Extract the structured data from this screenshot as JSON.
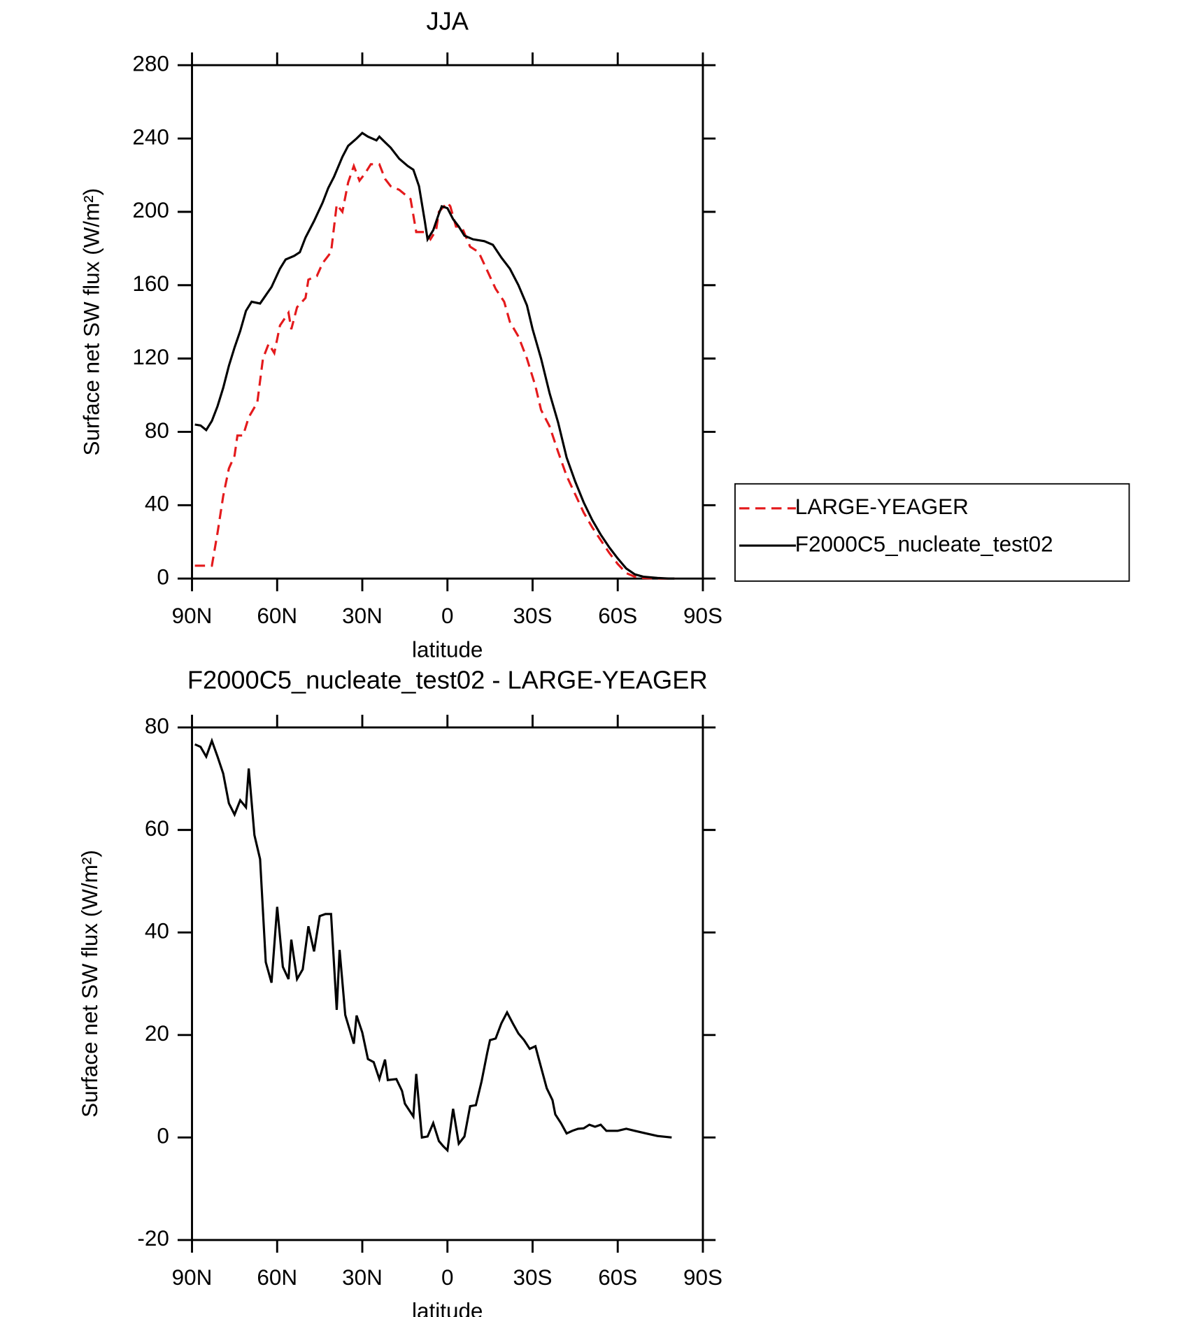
{
  "chart_data": [
    {
      "type": "line",
      "title": "JJA",
      "xlabel": "latitude",
      "ylabel": "Surface net SW flux (W/m²)",
      "xlim": [
        90,
        -90
      ],
      "xticks": [
        {
          "value": 90,
          "label": "90N"
        },
        {
          "value": 60,
          "label": "60N"
        },
        {
          "value": 30,
          "label": "30N"
        },
        0,
        {
          "value": -30,
          "label": "30S"
        },
        {
          "value": -60,
          "label": "60S"
        },
        {
          "value": -90,
          "label": "90S"
        }
      ],
      "ylim": [
        0,
        280
      ],
      "yticks": [
        0,
        40,
        80,
        120,
        160,
        200,
        240,
        280
      ],
      "legend": "right",
      "series": [
        {
          "name": "LARGE-YEAGER",
          "color": "#e41a1c",
          "linestyle": "dashed",
          "x": [
            89,
            85,
            83,
            81,
            79,
            77,
            75,
            74,
            72,
            70,
            67,
            65,
            63,
            61,
            59,
            56,
            55,
            53,
            50,
            49,
            46,
            44,
            41,
            39,
            37,
            35,
            33,
            31,
            29,
            27,
            24,
            22,
            20,
            17,
            13,
            11,
            8,
            6,
            4,
            3,
            0,
            -1,
            -3,
            -5,
            -8,
            -11,
            -14,
            -17,
            -20,
            -22,
            -25,
            -28,
            -31,
            -33,
            -36,
            -39,
            -42,
            -45,
            -48,
            -51,
            -54,
            -57,
            -60,
            -63,
            -66,
            -69,
            -75,
            -80
          ],
          "values": [
            7,
            7,
            7,
            25,
            45,
            60,
            67,
            78,
            78,
            88,
            96,
            120,
            128,
            123,
            138,
            145,
            136,
            148,
            153,
            163,
            165,
            172,
            178,
            204,
            200,
            216,
            225,
            217,
            221,
            226,
            226,
            218,
            214,
            212,
            207,
            189,
            189,
            185,
            190,
            200,
            205,
            203,
            192,
            192,
            181,
            178,
            168,
            158,
            151,
            140,
            132,
            120,
            105,
            92,
            83,
            69,
            56,
            46,
            36,
            28,
            21,
            14,
            8,
            3,
            1,
            0.3,
            0,
            0
          ]
        },
        {
          "name": "F2000C5_nucleate_test02",
          "color": "#000000",
          "linestyle": "solid",
          "x": [
            89,
            87,
            85,
            83,
            81,
            79,
            77,
            75,
            73,
            71,
            69,
            66,
            62,
            59,
            57,
            54,
            52,
            50,
            47,
            44,
            42,
            40,
            37,
            35,
            32,
            30,
            28,
            25,
            24,
            22,
            20,
            17,
            14,
            12,
            10,
            8,
            7,
            5,
            3,
            2,
            0,
            -2,
            -4,
            -6,
            -9,
            -13,
            -16,
            -19,
            -22,
            -25,
            -28,
            -30,
            -33,
            -36,
            -39,
            -42,
            -45,
            -48,
            -51,
            -54,
            -57,
            -60,
            -63,
            -66,
            -69,
            -74,
            -78,
            -80
          ],
          "values": [
            84,
            83.5,
            81,
            86,
            94,
            104,
            116,
            126,
            135,
            146,
            151,
            150,
            159,
            169,
            174,
            176,
            178,
            186,
            195,
            205,
            213,
            219,
            230,
            236,
            240,
            243,
            241,
            239,
            241,
            238,
            235,
            229,
            225,
            223,
            214,
            195,
            185,
            190,
            199,
            203,
            202,
            196,
            192,
            187,
            185,
            184,
            182,
            175,
            169,
            160,
            149,
            136,
            120,
            101,
            85,
            66,
            53,
            41.5,
            32,
            24,
            17,
            11,
            5.5,
            2.3,
            1,
            0.3,
            0,
            0
          ]
        }
      ]
    },
    {
      "type": "line",
      "title": "F2000C5_nucleate_test02 - LARGE-YEAGER",
      "xlabel": "latitude",
      "ylabel": "Surface net SW flux (W/m²)",
      "xlim": [
        90,
        -90
      ],
      "xticks": [
        {
          "value": 90,
          "label": "90N"
        },
        {
          "value": 60,
          "label": "60N"
        },
        {
          "value": 30,
          "label": "30N"
        },
        0,
        {
          "value": -30,
          "label": "30S"
        },
        {
          "value": -60,
          "label": "60S"
        },
        {
          "value": -90,
          "label": "90S"
        }
      ],
      "ylim": [
        -20,
        80
      ],
      "yticks": [
        -20,
        0,
        20,
        40,
        60,
        80
      ],
      "color": "#000000",
      "x": [
        89,
        87,
        85,
        83,
        81,
        79,
        77,
        75,
        73,
        71,
        70,
        68,
        66,
        64,
        62,
        60,
        58,
        56,
        55,
        53,
        51,
        49,
        47,
        45,
        43,
        41,
        39,
        38,
        36,
        33,
        32,
        30,
        28,
        26,
        24,
        22,
        21,
        18,
        16,
        15,
        12,
        11,
        9,
        7,
        5,
        3,
        1.5,
        0,
        -2,
        -4,
        -6,
        -8,
        -10,
        -12,
        -14,
        -15,
        -17,
        -19,
        -21,
        -23,
        -25,
        -27,
        -29,
        -31,
        -32,
        -35,
        -37,
        -38,
        -40,
        -42,
        -44,
        -46,
        -48,
        -50,
        -52,
        -54,
        -56,
        -60,
        -63,
        -66,
        -70,
        -74,
        -79
      ],
      "values": [
        76.7,
        76.2,
        74.3,
        77.4,
        74.3,
        71,
        65.2,
        63,
        65.8,
        64.4,
        72,
        59,
        54.3,
        34.2,
        30.2,
        45,
        33.3,
        30.9,
        38.6,
        30.9,
        32.8,
        41.2,
        36.3,
        43.2,
        43.6,
        43.6,
        24.9,
        36.6,
        23.9,
        18.3,
        23.8,
        20.5,
        15.3,
        14.7,
        11.4,
        15.2,
        11.2,
        11.4,
        9.1,
        6.6,
        4.1,
        12.4,
        0,
        0.2,
        2.8,
        -0.7,
        -1.7,
        -2.5,
        5.6,
        -1.2,
        0.2,
        6.1,
        6.3,
        10.9,
        16.5,
        19,
        19.3,
        22.3,
        24.4,
        22.3,
        20.3,
        19,
        17.3,
        17.8,
        15.7,
        9.6,
        7.3,
        4.5,
        2.8,
        0.8,
        1.3,
        1.7,
        1.8,
        2.5,
        2.1,
        2.5,
        1.3,
        1.3,
        1.7,
        1.3,
        0.8,
        0.3,
        0
      ]
    }
  ]
}
